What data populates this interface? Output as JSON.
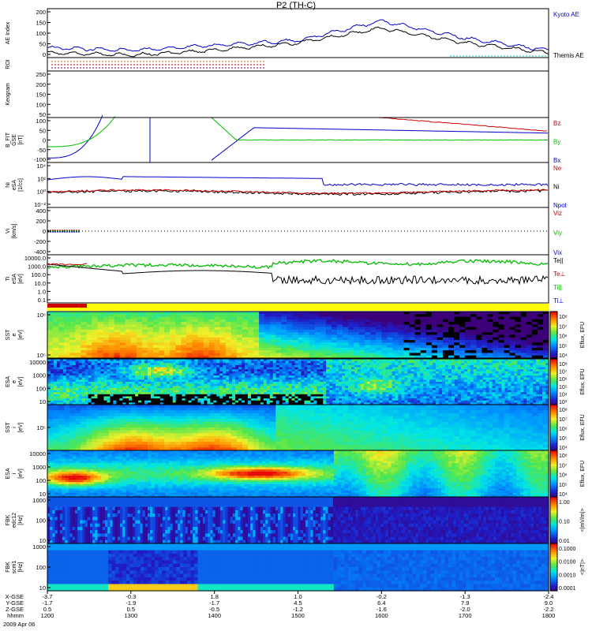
{
  "title": "P2 (TH-C)",
  "panels": [
    {
      "id": "ae",
      "ylabel": "AE Index",
      "yticks": [
        "200",
        "150",
        "100",
        "50",
        "0"
      ],
      "legend": [
        {
          "text": "Kyoto AE",
          "color": "#0000cc"
        },
        {
          "text": "Themis AE",
          "color": "#000000"
        }
      ]
    },
    {
      "id": "roi",
      "ylabel": "ROI",
      "yticks": []
    },
    {
      "id": "keogram",
      "ylabel": "Keogram",
      "yticks": [
        "250",
        "200",
        "150",
        "100",
        "50"
      ]
    },
    {
      "id": "bfit",
      "ylabel": [
        "B_FIT",
        "GSE",
        "[nT]"
      ],
      "yticks": [
        "100",
        "50",
        "0",
        "-50",
        "-100"
      ],
      "legend": [
        {
          "text": "Bz",
          "color": "#cc0000"
        },
        {
          "text": "By",
          "color": "#00bb00"
        },
        {
          "text": "Bx",
          "color": "#0000cc"
        }
      ]
    },
    {
      "id": "ni",
      "ylabel": [
        "Ni",
        "eSA",
        "[1/cc]"
      ],
      "yticks": [
        "10⁴",
        "10²",
        "10⁰",
        "10⁻²"
      ],
      "legend": [
        {
          "text": "Ne",
          "color": "#cc0000"
        },
        {
          "text": "Ni",
          "color": "#000000"
        },
        {
          "text": "Npot",
          "color": "#0000cc"
        }
      ]
    },
    {
      "id": "vi",
      "ylabel": [
        "Vi",
        "[km/s]"
      ],
      "yticks": [
        "400",
        "200",
        "0",
        "-200",
        "-400"
      ],
      "legend": [
        {
          "text": "Viz",
          "color": "#cc0000"
        },
        {
          "text": "Viy",
          "color": "#00bb00"
        },
        {
          "text": "Vix",
          "color": "#0000cc"
        }
      ]
    },
    {
      "id": "ti",
      "ylabel": [
        "Ti",
        "eSA",
        "[eV]"
      ],
      "yticks": [
        "10000.0",
        "1000.0",
        "100.0",
        "10.0",
        "1.0",
        "0.1"
      ],
      "legend": [
        {
          "text": "Te||",
          "color": "#000000"
        },
        {
          "text": "Te⊥",
          "color": "#cc0000"
        },
        {
          "text": "Ti||",
          "color": "#00bb00"
        },
        {
          "text": "Ti⊥",
          "color": "#0000cc"
        }
      ]
    },
    {
      "id": "sst_e",
      "ylabel": [
        "SST",
        "e",
        "[eV]"
      ],
      "yticks": [
        "10⁶",
        "10⁵"
      ]
    },
    {
      "id": "esa_e",
      "ylabel": [
        "ESA",
        "e",
        "[eV]"
      ],
      "yticks": [
        "10000",
        "1000",
        "100",
        "10"
      ]
    },
    {
      "id": "sst_i",
      "ylabel": [
        "SST",
        "i",
        "[eV]"
      ],
      "yticks": [
        "10⁵"
      ]
    },
    {
      "id": "esa_i",
      "ylabel": [
        "ESA",
        "i",
        "[eV]"
      ],
      "yticks": [
        "10000",
        "1000",
        "100",
        "10"
      ]
    },
    {
      "id": "fbk1",
      "ylabel": [
        "FBK",
        "edc12",
        "[Hz]"
      ],
      "yticks": [
        "1000",
        "100",
        "10"
      ]
    },
    {
      "id": "fbk2",
      "ylabel": [
        "FBK",
        "scm1",
        "[Hz]"
      ],
      "yticks": [
        "1000",
        "100",
        "10"
      ]
    }
  ],
  "colorbars": [
    {
      "label": "Eflux, EFU",
      "ticks": [
        "10⁸",
        "10⁷",
        "10⁶",
        "10⁵",
        "10⁴"
      ]
    },
    {
      "label": "Eflux, EFU",
      "ticks": [
        "10⁸",
        "10⁷",
        "10⁶",
        "10⁵",
        "10⁴",
        "10³"
      ]
    },
    {
      "label": "Eflux, EFU",
      "ticks": [
        "10⁸",
        "10⁷",
        "10⁶",
        "10⁵",
        "10⁴"
      ]
    },
    {
      "label": "Eflux, EFU",
      "ticks": [
        "10⁸",
        "10⁷",
        "10⁶",
        "10⁵",
        "10⁴"
      ]
    },
    {
      "label": "<|mV/m|>",
      "ticks": [
        "1.00",
        "0.10",
        "0.01"
      ]
    },
    {
      "label": "<|nT|>",
      "ticks": [
        "0.1000",
        "0.0100",
        "0.0010",
        "0.0001"
      ]
    }
  ],
  "xaxis": {
    "rows": [
      {
        "label": "X-GSE",
        "values": [
          "-3.7",
          "-0.3",
          "1.8",
          "1.0",
          "-0.2",
          "-1.3",
          "-2.4"
        ]
      },
      {
        "label": "Y-GSE",
        "values": [
          "-1.7",
          "-1.9",
          "-1.7",
          "4.5",
          "6.4",
          "7.9",
          "9.0"
        ]
      },
      {
        "label": "Z-GSE",
        "values": [
          "0.5",
          "0.5",
          "-0.5",
          "-1.2",
          "-1.6",
          "-2.0",
          "-2.2"
        ]
      },
      {
        "label": "hhmm",
        "values": [
          "1200",
          "1300",
          "1400",
          "1500",
          "1600",
          "1700",
          "1800"
        ]
      }
    ],
    "date": "2009 Apr 06"
  },
  "chart_data": {
    "type": "line",
    "title": "P2 (TH-C)",
    "x": [
      "1200",
      "1300",
      "1400",
      "1500",
      "1600",
      "1700",
      "1800"
    ],
    "series": [
      {
        "name": "Kyoto AE",
        "values": [
          40,
          30,
          50,
          70,
          150,
          80,
          30
        ]
      },
      {
        "name": "Themis AE",
        "values": [
          20,
          10,
          30,
          60,
          120,
          60,
          20
        ]
      }
    ]
  }
}
